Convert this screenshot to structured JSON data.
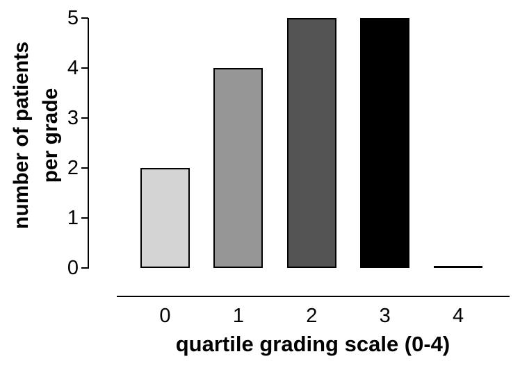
{
  "chart_data": {
    "type": "bar",
    "categories": [
      "0",
      "1",
      "2",
      "3",
      "4"
    ],
    "values": [
      2,
      4,
      5,
      5,
      0
    ],
    "bar_colors": [
      "#d4d4d4",
      "#969696",
      "#545454",
      "#000000",
      "#000000"
    ],
    "bar_edge_color": "#000000",
    "xlabel": "quartile grading scale (0-4)",
    "ylabel": "number of patients per grade",
    "ylabel_lines": [
      "number of patients",
      "per grade"
    ],
    "yticks": [
      0,
      1,
      2,
      3,
      4,
      5
    ],
    "ylim": [
      0,
      5
    ],
    "grid": false,
    "legend": false,
    "axis_color": "#000000",
    "background": "#ffffff"
  }
}
